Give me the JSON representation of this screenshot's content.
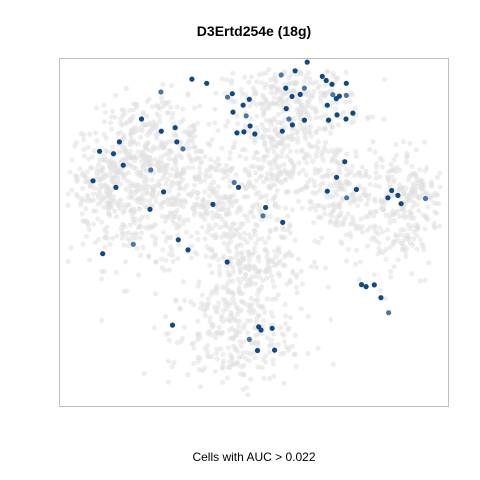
{
  "chart_data": {
    "type": "scatter",
    "title": "D3Ertd254e (18g)",
    "xlabel": "Cells with AUC > 0.022",
    "ylabel": "",
    "axes_visible": false,
    "grid": false,
    "colors": {
      "background_cells": "#e0e0e0",
      "high_auc_cells": "#0d4a86",
      "high_auc_cells_light": "#4a75a8",
      "plot_border": "#bfbfbf"
    },
    "xlim": [
      0,
      1
    ],
    "ylim": [
      0,
      1
    ],
    "series": [
      {
        "category": "high-auc",
        "points": [
          [
            0.34,
            0.942
          ],
          [
            0.378,
            0.93
          ],
          [
            0.432,
            0.89
          ],
          [
            0.444,
            0.9
          ],
          [
            0.472,
            0.867
          ],
          [
            0.446,
            0.847
          ],
          [
            0.488,
            0.884
          ],
          [
            0.48,
            0.836
          ],
          [
            0.49,
            0.807
          ],
          [
            0.456,
            0.787
          ],
          [
            0.474,
            0.79
          ],
          [
            0.502,
            0.784
          ],
          [
            0.57,
            0.954
          ],
          [
            0.606,
            0.966
          ],
          [
            0.637,
            0.991
          ],
          [
            0.582,
            0.916
          ],
          [
            0.598,
            0.892
          ],
          [
            0.63,
            0.916
          ],
          [
            0.619,
            0.898
          ],
          [
            0.583,
            0.857
          ],
          [
            0.599,
            0.81
          ],
          [
            0.63,
            0.824
          ],
          [
            0.59,
            0.827
          ],
          [
            0.573,
            0.792
          ],
          [
            0.676,
            0.95
          ],
          [
            0.686,
            0.938
          ],
          [
            0.701,
            0.927
          ],
          [
            0.703,
            0.897
          ],
          [
            0.712,
            0.886
          ],
          [
            0.689,
            0.867
          ],
          [
            0.72,
            0.893
          ],
          [
            0.738,
            0.93
          ],
          [
            0.738,
            0.895
          ],
          [
            0.714,
            0.839
          ],
          [
            0.692,
            0.824
          ],
          [
            0.755,
            0.844
          ],
          [
            0.737,
            0.827
          ],
          [
            0.26,
            0.905
          ],
          [
            0.21,
            0.827
          ],
          [
            0.261,
            0.792
          ],
          [
            0.297,
            0.802
          ],
          [
            0.301,
            0.761
          ],
          [
            0.317,
            0.741
          ],
          [
            0.153,
            0.761
          ],
          [
            0.138,
            0.727
          ],
          [
            0.102,
            0.734
          ],
          [
            0.163,
            0.694
          ],
          [
            0.234,
            0.68
          ],
          [
            0.085,
            0.649
          ],
          [
            0.144,
            0.63
          ],
          [
            0.232,
            0.567
          ],
          [
            0.267,
            0.617
          ],
          [
            0.449,
            0.644
          ],
          [
            0.46,
            0.63
          ],
          [
            0.53,
            0.572
          ],
          [
            0.394,
            0.581
          ],
          [
            0.33,
            0.45
          ],
          [
            0.189,
            0.466
          ],
          [
            0.11,
            0.439
          ],
          [
            0.305,
            0.479
          ],
          [
            0.431,
            0.415
          ],
          [
            0.574,
            0.529
          ],
          [
            0.523,
            0.548
          ],
          [
            0.734,
            0.704
          ],
          [
            0.713,
            0.659
          ],
          [
            0.689,
            0.619
          ],
          [
            0.764,
            0.624
          ],
          [
            0.739,
            0.6
          ],
          [
            0.845,
            0.6
          ],
          [
            0.855,
            0.621
          ],
          [
            0.879,
            0.583
          ],
          [
            0.871,
            0.607
          ],
          [
            0.942,
            0.598
          ],
          [
            0.777,
            0.35
          ],
          [
            0.789,
            0.344
          ],
          [
            0.81,
            0.349
          ],
          [
            0.827,
            0.312
          ],
          [
            0.847,
            0.269
          ],
          [
            0.29,
            0.233
          ],
          [
            0.512,
            0.228
          ],
          [
            0.518,
            0.219
          ],
          [
            0.547,
            0.224
          ],
          [
            0.488,
            0.192
          ],
          [
            0.509,
            0.16
          ],
          [
            0.553,
            0.161
          ]
        ]
      }
    ]
  }
}
